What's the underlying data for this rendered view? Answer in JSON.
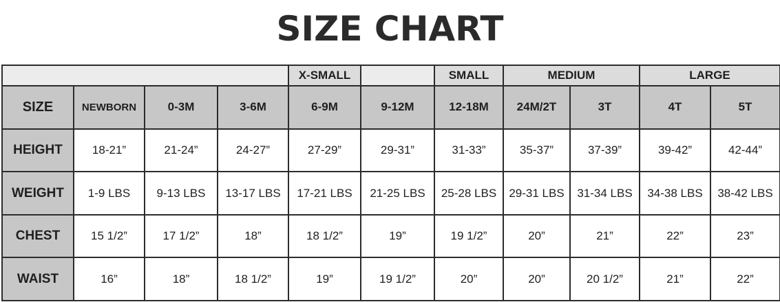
{
  "title": "SIZE CHART",
  "groups": {
    "xsmall": "X-SMALL",
    "small": "SMALL",
    "medium": "MEDIUM",
    "large": "LARGE"
  },
  "header": {
    "label": "SIZE",
    "sizes": [
      "NEWBORN",
      "0-3M",
      "3-6M",
      "6-9M",
      "9-12M",
      "12-18M",
      "24M/2T",
      "3T",
      "4T",
      "5T"
    ]
  },
  "rows": [
    {
      "label": "HEIGHT",
      "values": [
        "18-21”",
        "21-24”",
        "24-27”",
        "27-29”",
        "29-31”",
        "31-33”",
        "35-37”",
        "37-39”",
        "39-42”",
        "42-44”"
      ]
    },
    {
      "label": "WEIGHT",
      "values": [
        "1-9 LBS",
        "9-13 LBS",
        "13-17 LBS",
        "17-21 LBS",
        "21-25 LBS",
        "25-28 LBS",
        "29-31 LBS",
        "31-34 LBS",
        "34-38 LBS",
        "38-42 LBS"
      ]
    },
    {
      "label": "CHEST",
      "values": [
        "15 1/2”",
        "17 1/2”",
        "18”",
        "18 1/2”",
        "19”",
        "19 1/2”",
        "20”",
        "21”",
        "22”",
        "23”"
      ]
    },
    {
      "label": "WAIST",
      "values": [
        "16”",
        "18”",
        "18 1/2”",
        "19”",
        "19 1/2”",
        "20”",
        "20”",
        "20 1/2”",
        "21”",
        "22”"
      ]
    }
  ]
}
